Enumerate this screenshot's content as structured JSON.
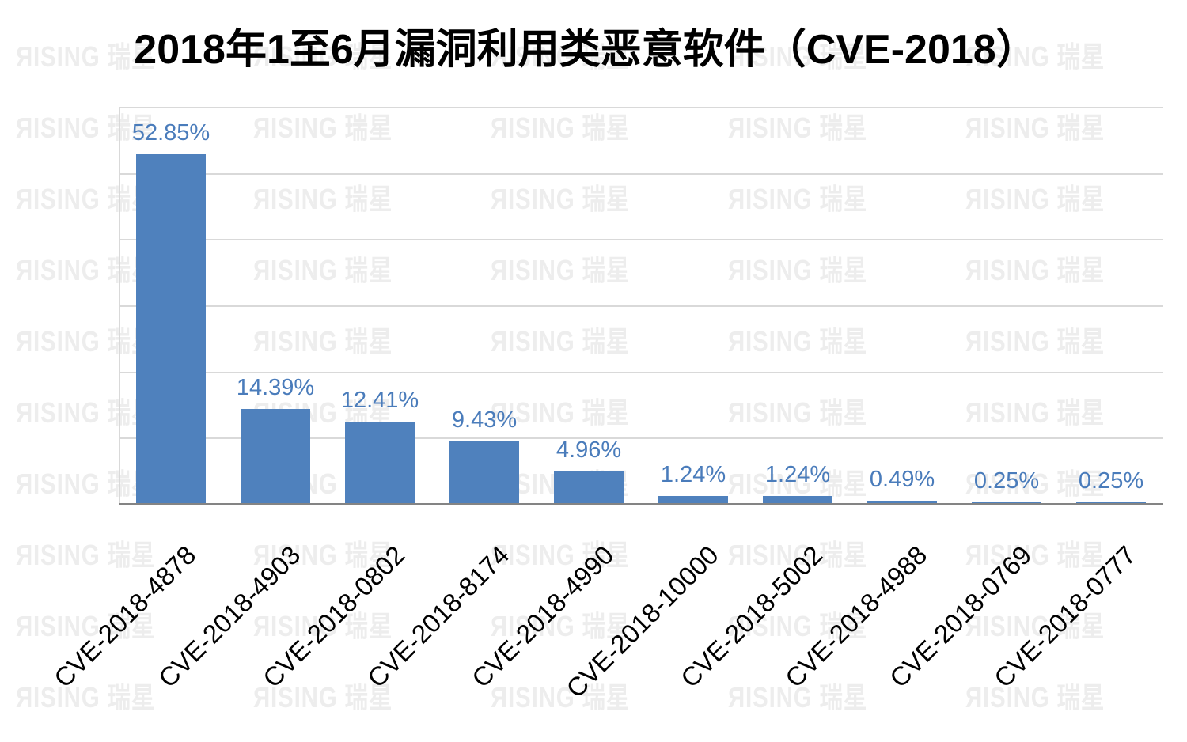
{
  "title": {
    "text": "2018年1至6月漏洞利用类恶意软件（CVE-2018）"
  },
  "watermark": {
    "text": "ЯISING 瑞星",
    "color": "#EDEDED"
  },
  "chart_data": {
    "type": "bar",
    "title": "2018年1至6月漏洞利用类恶意软件（CVE-2018）",
    "categories": [
      "CVE-2018-4878",
      "CVE-2018-4903",
      "CVE-2018-0802",
      "CVE-2018-8174",
      "CVE-2018-4990",
      "CVE-2018-10000",
      "CVE-2018-5002",
      "CVE-2018-4988",
      "CVE-2018-0769",
      "CVE-2018-0777"
    ],
    "values": [
      52.85,
      14.39,
      12.41,
      9.43,
      4.96,
      1.24,
      1.24,
      0.49,
      0.25,
      0.25
    ],
    "data_labels": [
      "52.85%",
      "14.39%",
      "12.41%",
      "9.43%",
      "4.96%",
      "1.24%",
      "1.24%",
      "0.49%",
      "0.25%",
      "0.25%"
    ],
    "unit": "%",
    "xlabel": "",
    "ylabel": "",
    "ylim": [
      0,
      60
    ],
    "grid_step": 10,
    "grid": "horizontal-only",
    "y_tick_labels_visible": false,
    "legend_position": "none",
    "bar_color": "#4F81BD",
    "label_color": "#4A7CBB",
    "gridline_color": "#D9D9D9",
    "axis_line_color": "#848484",
    "category_label_rotation_deg": -45
  }
}
